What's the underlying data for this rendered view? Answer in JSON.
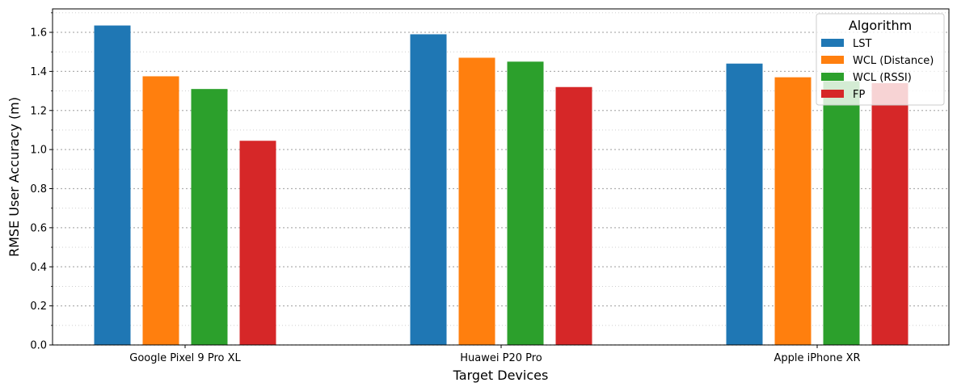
{
  "chart_data": {
    "type": "bar",
    "title": "",
    "xlabel": "Target Devices",
    "ylabel": "RMSE User Accuracy (m)",
    "ylim": [
      0,
      1.72
    ],
    "yticks": [
      "0.0",
      "0.2",
      "0.4",
      "0.6",
      "0.8",
      "1.0",
      "1.2",
      "1.4",
      "1.6"
    ],
    "ytick_values": [
      0,
      0.2,
      0.4,
      0.6,
      0.8,
      1.0,
      1.2,
      1.4,
      1.6
    ],
    "grid": "y-major-and-minor-dotted",
    "categories": [
      "Google Pixel 9 Pro XL",
      "Huawei P20 Pro",
      "Apple iPhone XR"
    ],
    "series": [
      {
        "name": "LST",
        "color": "#1f77b4",
        "values": [
          1.635,
          1.59,
          1.44
        ]
      },
      {
        "name": "WCL (Distance)",
        "color": "#ff7f0e",
        "values": [
          1.375,
          1.47,
          1.37
        ]
      },
      {
        "name": "WCL (RSSI)",
        "color": "#2ca02c",
        "values": [
          1.31,
          1.45,
          1.35
        ]
      },
      {
        "name": "FP",
        "color": "#d62728",
        "values": [
          1.045,
          1.32,
          1.34
        ]
      }
    ],
    "legend": {
      "title": "Algorithm",
      "placement": "top-right"
    }
  }
}
